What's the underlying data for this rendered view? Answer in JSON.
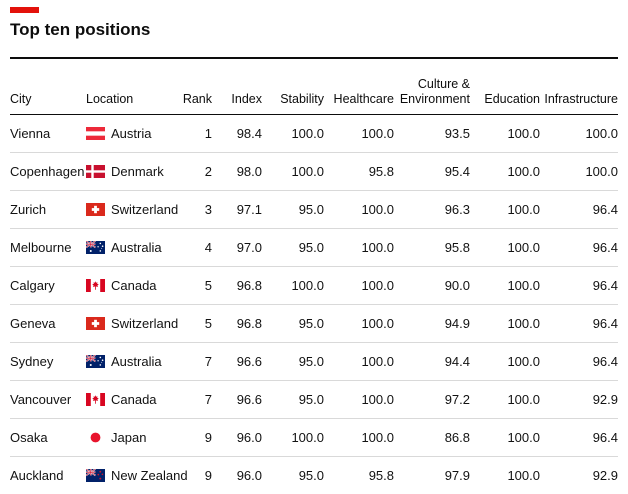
{
  "title": "Top ten positions",
  "accent_color": "#e3120b",
  "chart_data": {
    "type": "table",
    "title": "Top ten positions",
    "columns": [
      {
        "id": "city",
        "header_lines": [
          "City"
        ]
      },
      {
        "id": "location",
        "header_lines": [
          "Location"
        ]
      },
      {
        "id": "rank",
        "header_lines": [
          "Rank"
        ]
      },
      {
        "id": "index",
        "header_lines": [
          "Index"
        ]
      },
      {
        "id": "stability",
        "header_lines": [
          "Stability"
        ]
      },
      {
        "id": "healthcare",
        "header_lines": [
          "Healthcare"
        ]
      },
      {
        "id": "culture",
        "header_lines": [
          "Culture &",
          "Environment"
        ]
      },
      {
        "id": "education",
        "header_lines": [
          "Education"
        ]
      },
      {
        "id": "infrastructure",
        "header_lines": [
          "Infrastructure"
        ]
      }
    ],
    "rows": [
      {
        "city": "Vienna",
        "location": "Austria",
        "flag": "austria",
        "rank": "1",
        "index": "98.4",
        "stability": "100.0",
        "healthcare": "100.0",
        "culture": "93.5",
        "education": "100.0",
        "infrastructure": "100.0"
      },
      {
        "city": "Copenhagen",
        "location": "Denmark",
        "flag": "denmark",
        "rank": "2",
        "index": "98.0",
        "stability": "100.0",
        "healthcare": "95.8",
        "culture": "95.4",
        "education": "100.0",
        "infrastructure": "100.0"
      },
      {
        "city": "Zurich",
        "location": "Switzerland",
        "flag": "switzerland",
        "rank": "3",
        "index": "97.1",
        "stability": "95.0",
        "healthcare": "100.0",
        "culture": "96.3",
        "education": "100.0",
        "infrastructure": "96.4"
      },
      {
        "city": "Melbourne",
        "location": "Australia",
        "flag": "australia",
        "rank": "4",
        "index": "97.0",
        "stability": "95.0",
        "healthcare": "100.0",
        "culture": "95.8",
        "education": "100.0",
        "infrastructure": "96.4"
      },
      {
        "city": "Calgary",
        "location": "Canada",
        "flag": "canada",
        "rank": "5",
        "index": "96.8",
        "stability": "100.0",
        "healthcare": "100.0",
        "culture": "90.0",
        "education": "100.0",
        "infrastructure": "96.4"
      },
      {
        "city": "Geneva",
        "location": "Switzerland",
        "flag": "switzerland",
        "rank": "5",
        "index": "96.8",
        "stability": "95.0",
        "healthcare": "100.0",
        "culture": "94.9",
        "education": "100.0",
        "infrastructure": "96.4"
      },
      {
        "city": "Sydney",
        "location": "Australia",
        "flag": "australia",
        "rank": "7",
        "index": "96.6",
        "stability": "95.0",
        "healthcare": "100.0",
        "culture": "94.4",
        "education": "100.0",
        "infrastructure": "96.4"
      },
      {
        "city": "Vancouver",
        "location": "Canada",
        "flag": "canada",
        "rank": "7",
        "index": "96.6",
        "stability": "95.0",
        "healthcare": "100.0",
        "culture": "97.2",
        "education": "100.0",
        "infrastructure": "92.9"
      },
      {
        "city": "Osaka",
        "location": "Japan",
        "flag": "japan",
        "rank": "9",
        "index": "96.0",
        "stability": "100.0",
        "healthcare": "100.0",
        "culture": "86.8",
        "education": "100.0",
        "infrastructure": "96.4"
      },
      {
        "city": "Auckland",
        "location": "New Zealand",
        "flag": "new_zealand",
        "rank": "9",
        "index": "96.0",
        "stability": "95.0",
        "healthcare": "95.8",
        "culture": "97.9",
        "education": "100.0",
        "infrastructure": "92.9"
      }
    ]
  }
}
